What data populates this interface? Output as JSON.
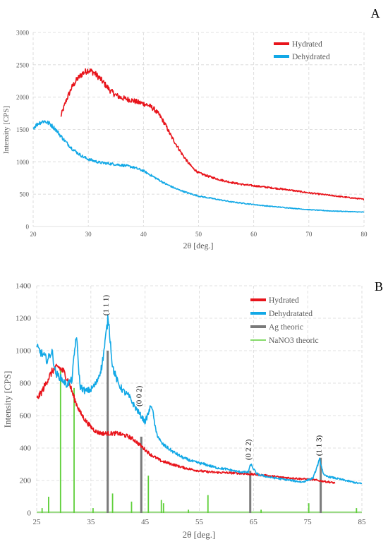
{
  "panels": {
    "A": {
      "label": "A"
    },
    "B": {
      "label": "B"
    }
  },
  "colors": {
    "hydrated": "#e8141b",
    "dehydrated": "#12a8e6",
    "ag_theoric": "#7a7a7a",
    "nano3_theoric": "#5fcf3a",
    "grid": "#d6d6d6",
    "text": "#595959"
  },
  "chart_data": [
    {
      "panel": "A",
      "type": "line",
      "title": "",
      "xlabel": "2θ [deg.]",
      "ylabel": "Intensity [CPS]",
      "xlim": [
        20,
        80
      ],
      "ylim": [
        0,
        3000
      ],
      "xticks": [
        20,
        30,
        40,
        50,
        60,
        70,
        80
      ],
      "yticks": [
        0,
        500,
        1000,
        1500,
        2000,
        2500,
        3000
      ],
      "grid": true,
      "legend_position": "top-right",
      "series": [
        {
          "name": "Hydrated",
          "color": "#e8141b",
          "x": [
            25,
            26,
            27,
            28,
            29,
            30,
            31,
            32,
            33,
            34,
            35,
            36,
            37,
            38,
            39,
            40,
            41,
            42,
            43,
            44,
            45,
            46,
            47,
            48,
            49,
            50,
            52,
            54,
            56,
            58,
            60,
            62,
            64,
            66,
            68,
            70,
            72,
            74,
            76,
            78,
            80
          ],
          "y": [
            1700,
            1950,
            2150,
            2280,
            2370,
            2420,
            2380,
            2300,
            2200,
            2100,
            2030,
            1990,
            1970,
            1950,
            1920,
            1900,
            1870,
            1810,
            1710,
            1570,
            1400,
            1260,
            1120,
            1000,
            900,
            830,
            770,
            720,
            680,
            650,
            630,
            610,
            590,
            570,
            545,
            520,
            500,
            480,
            460,
            440,
            420
          ]
        },
        {
          "name": "Dehydrated",
          "color": "#12a8e6",
          "x": [
            20,
            21,
            22,
            23,
            24,
            25,
            26,
            27,
            28,
            29,
            30,
            32,
            34,
            36,
            38,
            40,
            42,
            44,
            46,
            48,
            50,
            52,
            54,
            56,
            58,
            60,
            62,
            64,
            66,
            68,
            70,
            72,
            74,
            76,
            78,
            80
          ],
          "y": [
            1520,
            1600,
            1630,
            1590,
            1510,
            1400,
            1300,
            1210,
            1140,
            1080,
            1040,
            990,
            970,
            950,
            920,
            860,
            760,
            660,
            580,
            520,
            470,
            440,
            410,
            380,
            360,
            340,
            320,
            305,
            290,
            275,
            260,
            250,
            240,
            235,
            228,
            222
          ]
        }
      ]
    },
    {
      "panel": "B",
      "type": "line",
      "title": "",
      "xlabel": "2θ [deg.]",
      "ylabel": "Intensity [CPS]",
      "xlim": [
        25,
        85
      ],
      "ylim": [
        0,
        1400
      ],
      "xticks": [
        25,
        35,
        45,
        55,
        65,
        75,
        85
      ],
      "yticks": [
        0,
        200,
        400,
        600,
        800,
        1000,
        1200,
        1400
      ],
      "grid": true,
      "legend_position": "top-right",
      "annotations": [
        {
          "text": "(1 1 1)",
          "x": 38.2,
          "y": 1280
        },
        {
          "text": "(0 0 2)",
          "x": 44.3,
          "y": 720
        },
        {
          "text": "(0 2 2)",
          "x": 64.5,
          "y": 390
        },
        {
          "text": "(1 1 3)",
          "x": 77.5,
          "y": 415
        }
      ],
      "series": [
        {
          "name": "Hydrated",
          "color": "#e8141b",
          "x": [
            25,
            26,
            27,
            28,
            29,
            30,
            31,
            32,
            33,
            34,
            35,
            36,
            37,
            38,
            39,
            40,
            41,
            42,
            43,
            44,
            45,
            46,
            48,
            50,
            52,
            54,
            56,
            58,
            60,
            62,
            64,
            66,
            68,
            70,
            72,
            74,
            76,
            78,
            80
          ],
          "y": [
            700,
            750,
            820,
            880,
            900,
            870,
            800,
            700,
            620,
            570,
            530,
            500,
            490,
            490,
            490,
            490,
            480,
            470,
            450,
            420,
            390,
            360,
            320,
            300,
            280,
            265,
            255,
            250,
            248,
            245,
            240,
            235,
            228,
            220,
            215,
            210,
            205,
            195,
            185
          ]
        },
        {
          "name": "Dehydratated",
          "color": "#12a8e6",
          "x": [
            25,
            26,
            27,
            27.8,
            28.5,
            29.5,
            30.5,
            31.5,
            32.3,
            33,
            34,
            35,
            36,
            37,
            37.5,
            38.2,
            39,
            40,
            41,
            42,
            43,
            44,
            45,
            46.2,
            47,
            48,
            50,
            52,
            54,
            56,
            58,
            60,
            62,
            64,
            64.5,
            65.5,
            66,
            68,
            70,
            72,
            74,
            76,
            77.2,
            78,
            80,
            82,
            84,
            85
          ],
          "y": [
            1020,
            980,
            940,
            1000,
            860,
            830,
            790,
            820,
            1100,
            780,
            750,
            760,
            800,
            900,
            1020,
            1210,
            900,
            800,
            750,
            720,
            660,
            610,
            560,
            670,
            500,
            430,
            380,
            340,
            315,
            300,
            280,
            270,
            255,
            250,
            300,
            245,
            235,
            220,
            210,
            200,
            190,
            215,
            330,
            230,
            215,
            200,
            185,
            180
          ]
        },
        {
          "name": "Ag theoric",
          "color": "#7a7a7a",
          "kind": "stick",
          "x": [
            38.1,
            44.3,
            64.4,
            77.4
          ],
          "y": [
            1000,
            470,
            260,
            340
          ]
        },
        {
          "name": "NaNO3 theoric",
          "color": "#5fcf3a",
          "kind": "stick",
          "x": [
            26.0,
            27.2,
            29.4,
            31.9,
            35.4,
            39.0,
            42.5,
            45.6,
            48.0,
            48.4,
            53.0,
            56.6,
            66.4,
            75.2,
            84.0
          ],
          "y": [
            30,
            100,
            880,
            770,
            30,
            120,
            70,
            230,
            80,
            60,
            20,
            110,
            20,
            60,
            30
          ]
        }
      ]
    }
  ]
}
